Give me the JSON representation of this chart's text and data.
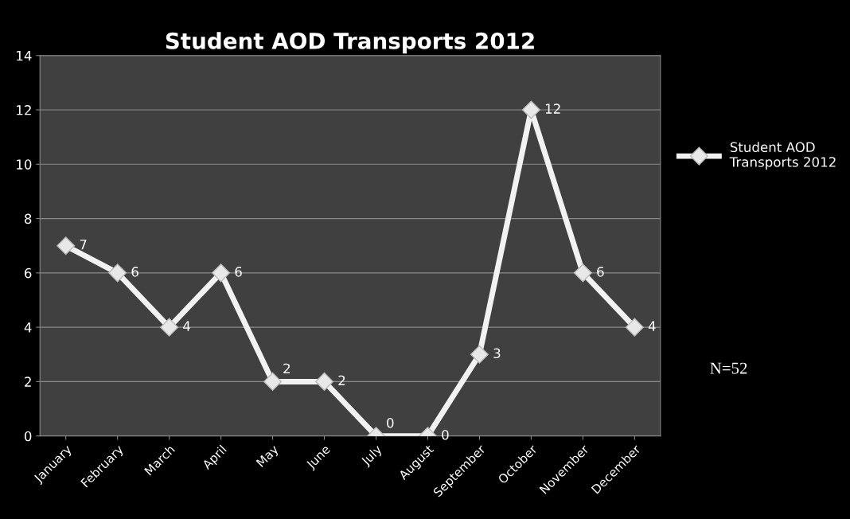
{
  "chart_data": {
    "type": "line",
    "title": "Student AOD Transports 2012",
    "categories": [
      "January",
      "February",
      "March",
      "April",
      "May",
      "June",
      "July",
      "August",
      "September",
      "October",
      "November",
      "December"
    ],
    "series": [
      {
        "name": "Student AOD\nTransports 2012",
        "color": "#f2f2f2",
        "values": [
          7,
          6,
          4,
          6,
          2,
          2,
          0,
          0,
          3,
          12,
          6,
          4
        ]
      }
    ],
    "ylim": [
      0,
      14
    ],
    "yticks": [
      0,
      2,
      4,
      6,
      8,
      10,
      12,
      14
    ],
    "grid": "y",
    "legend": "right",
    "marker": "diamond",
    "line_style": "solid",
    "data_labels": true,
    "annotations": [
      "N=52"
    ]
  }
}
